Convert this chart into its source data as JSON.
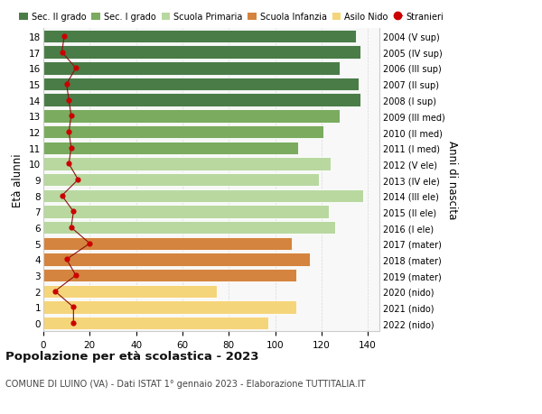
{
  "ages": [
    18,
    17,
    16,
    15,
    14,
    13,
    12,
    11,
    10,
    9,
    8,
    7,
    6,
    5,
    4,
    3,
    2,
    1,
    0
  ],
  "years": [
    "2004 (V sup)",
    "2005 (IV sup)",
    "2006 (III sup)",
    "2007 (II sup)",
    "2008 (I sup)",
    "2009 (III med)",
    "2010 (II med)",
    "2011 (I med)",
    "2012 (V ele)",
    "2013 (IV ele)",
    "2014 (III ele)",
    "2015 (II ele)",
    "2016 (I ele)",
    "2017 (mater)",
    "2018 (mater)",
    "2019 (mater)",
    "2020 (nido)",
    "2021 (nido)",
    "2022 (nido)"
  ],
  "bar_values": [
    135,
    137,
    128,
    136,
    137,
    128,
    121,
    110,
    124,
    119,
    138,
    123,
    126,
    107,
    115,
    109,
    75,
    109,
    97
  ],
  "bar_colors": [
    "#4a7c47",
    "#4a7c47",
    "#4a7c47",
    "#4a7c47",
    "#4a7c47",
    "#7aab5e",
    "#7aab5e",
    "#7aab5e",
    "#b8d8a0",
    "#b8d8a0",
    "#b8d8a0",
    "#b8d8a0",
    "#b8d8a0",
    "#d4843e",
    "#d4843e",
    "#d4843e",
    "#f5d57a",
    "#f5d57a",
    "#f5d57a"
  ],
  "stranieri": [
    9,
    8,
    14,
    10,
    11,
    12,
    11,
    12,
    11,
    15,
    8,
    13,
    12,
    20,
    10,
    14,
    5,
    13,
    13
  ],
  "legend_labels": [
    "Sec. II grado",
    "Sec. I grado",
    "Scuola Primaria",
    "Scuola Infanzia",
    "Asilo Nido",
    "Stranieri"
  ],
  "legend_colors": [
    "#4a7c47",
    "#7aab5e",
    "#b8d8a0",
    "#d4843e",
    "#f5d57a",
    "#cc0000"
  ],
  "ylabel": "Età alunni",
  "right_ylabel": "Anni di nascita",
  "title": "Popolazione per età scolastica - 2023",
  "subtitle": "COMUNE DI LUINO (VA) - Dati ISTAT 1° gennaio 2023 - Elaborazione TUTTITALIA.IT",
  "xlim": [
    0,
    145
  ],
  "xticks": [
    0,
    20,
    40,
    60,
    80,
    100,
    120,
    140
  ],
  "background_color": "#f8f8f8",
  "grid_color": "#d8d8d8"
}
